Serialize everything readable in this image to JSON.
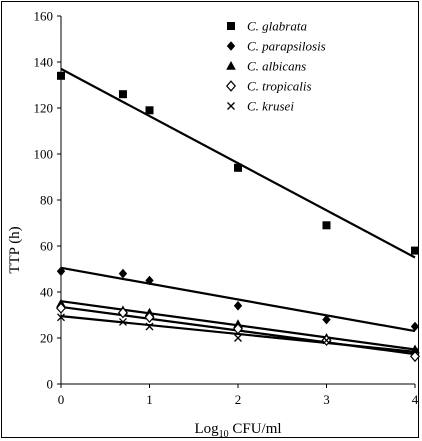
{
  "chart_data": {
    "type": "scatter",
    "title": "",
    "xlabel_main": "Log",
    "xlabel_sub": "10",
    "xlabel_rest": " CFU/ml",
    "ylabel": "TTP (h)",
    "xlim": [
      0,
      4
    ],
    "ylim": [
      0,
      160
    ],
    "xticks": [
      0,
      1,
      2,
      3,
      4
    ],
    "yticks": [
      0,
      20,
      40,
      60,
      80,
      100,
      120,
      140,
      160
    ],
    "grid": false,
    "legend_position": "top-right",
    "series": [
      {
        "name": "C. glabrata",
        "marker": "square",
        "points": [
          [
            0,
            134
          ],
          [
            0.7,
            126
          ],
          [
            1,
            119
          ],
          [
            2,
            94
          ],
          [
            3,
            69
          ],
          [
            4,
            58
          ]
        ],
        "fit": [
          [
            0,
            137
          ],
          [
            4,
            55
          ]
        ]
      },
      {
        "name": "C. parapsilosis",
        "marker": "diamond",
        "points": [
          [
            0,
            49
          ],
          [
            0.7,
            48
          ],
          [
            1,
            45
          ],
          [
            2,
            34
          ],
          [
            3,
            28
          ],
          [
            4,
            25
          ]
        ],
        "fit": [
          [
            0,
            50.5
          ],
          [
            4,
            23
          ]
        ]
      },
      {
        "name": "C. albicans",
        "marker": "triangle",
        "points": [
          [
            0,
            35
          ],
          [
            0.7,
            32
          ],
          [
            1,
            31
          ],
          [
            2,
            26
          ],
          [
            3,
            20
          ],
          [
            4,
            15
          ]
        ],
        "fit": [
          [
            0,
            36
          ],
          [
            4,
            15
          ]
        ]
      },
      {
        "name": "C. tropicalis",
        "marker": "open-diamond",
        "points": [
          [
            0,
            33
          ],
          [
            0.7,
            31
          ],
          [
            1,
            29
          ],
          [
            2,
            24
          ],
          [
            3,
            19
          ],
          [
            4,
            12
          ]
        ],
        "fit": [
          [
            0,
            33.5
          ],
          [
            4,
            13
          ]
        ]
      },
      {
        "name": "C. krusei",
        "marker": "cross",
        "points": [
          [
            0,
            29
          ],
          [
            0.7,
            27
          ],
          [
            1,
            25
          ],
          [
            2,
            20
          ],
          [
            3,
            19
          ],
          [
            4,
            14
          ]
        ],
        "fit": [
          [
            0,
            29.5
          ],
          [
            4,
            14
          ]
        ]
      }
    ]
  }
}
